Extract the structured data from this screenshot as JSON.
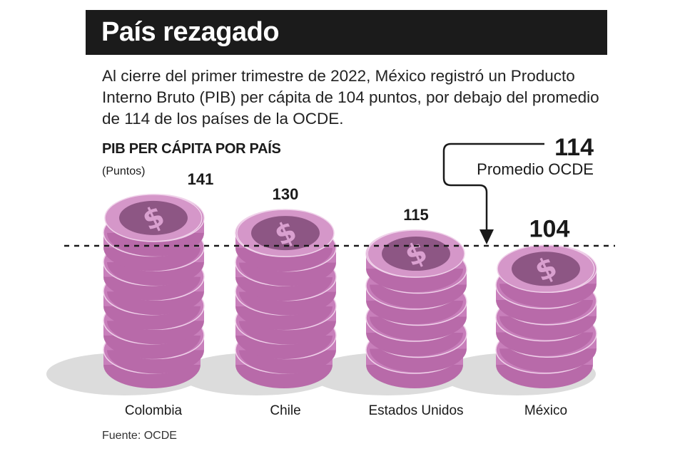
{
  "title": "País rezagado",
  "description": "Al cierre del primer trimestre de 2022, México registró un Producto Interno Bruto (PIB) per cápita de 104 puntos, por debajo del promedio de 114 de los países de la OCDE.",
  "source": "Fuente: OCDE",
  "chart_data": {
    "type": "bar",
    "title": "PIB PER CÁPITA POR PAÍS",
    "ylabel": "(Puntos)",
    "categories": [
      "Colombia",
      "Chile",
      "Estados Unidos",
      "México"
    ],
    "values": [
      141,
      130,
      115,
      104
    ],
    "reference_line": {
      "value": 114,
      "value_label": "114",
      "label": "Promedio OCDE",
      "style": "dashed"
    },
    "bar_style": "stacked coins",
    "colors": {
      "coin_side": "#c87fbb",
      "coin_top": "#d597c9",
      "coin_face": "#8d5684",
      "shadow": "#dcdcdc"
    }
  }
}
